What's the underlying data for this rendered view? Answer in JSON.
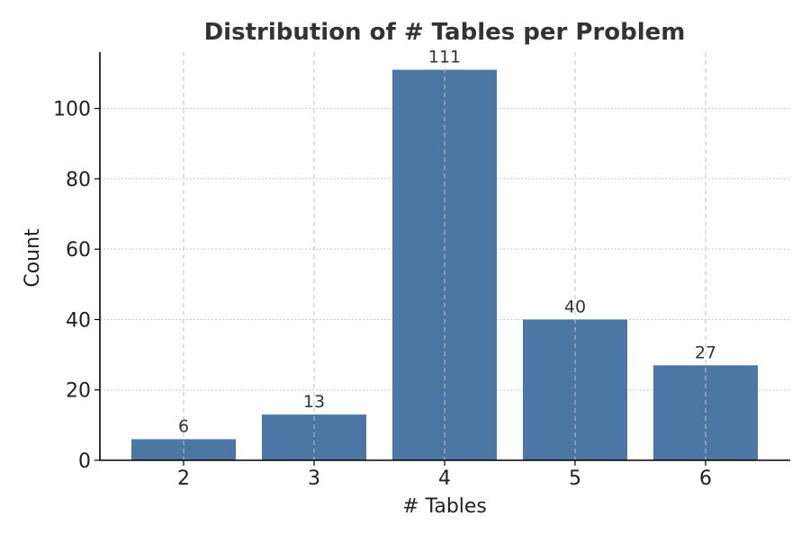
{
  "chart_data": {
    "type": "bar",
    "title": "Distribution of # Tables per Problem",
    "xlabel": "# Tables",
    "ylabel": "Count",
    "categories": [
      "2",
      "3",
      "4",
      "5",
      "6"
    ],
    "values": [
      6,
      13,
      111,
      40,
      27
    ],
    "ylim": [
      0,
      116
    ],
    "yticks": [
      0,
      20,
      40,
      60,
      80,
      100
    ],
    "grid": true,
    "legend": "none",
    "bar_color": "#4c76a4"
  }
}
